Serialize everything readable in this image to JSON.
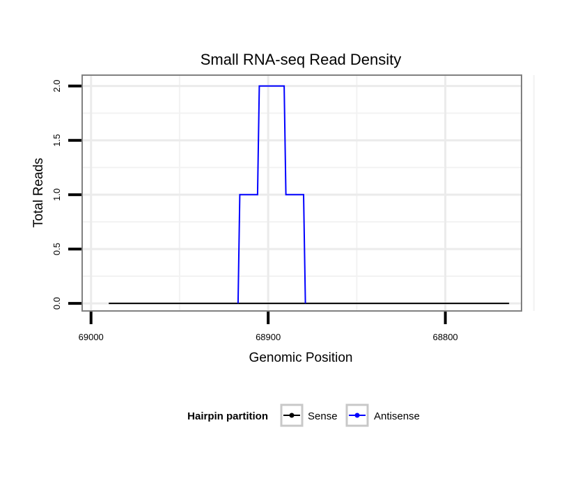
{
  "chart_data": {
    "type": "line",
    "title": "Small RNA-seq Read Density",
    "xlabel": "Genomic Position",
    "ylabel": "Total Reads",
    "x_reversed": true,
    "xlim": [
      69005,
      68757
    ],
    "ylim": [
      -0.07,
      2.1
    ],
    "x_ticks": [
      69000,
      68900,
      68800
    ],
    "x_tick_labels": [
      "69000",
      "68900",
      "68800"
    ],
    "y_ticks": [
      0.0,
      0.5,
      1.0,
      1.5,
      2.0
    ],
    "y_tick_labels": [
      "0.0",
      "0.5",
      "1.0",
      "1.5",
      "2.0"
    ],
    "grid": true,
    "series": [
      {
        "name": "Sense",
        "color": "#000000",
        "x": [
          68990,
          68764
        ],
        "y": [
          0,
          0
        ]
      },
      {
        "name": "Antisense",
        "color": "#0000ff",
        "x": [
          68917,
          68916,
          68906,
          68905,
          68891,
          68890,
          68880,
          68879
        ],
        "y": [
          0,
          1,
          1,
          2,
          2,
          1,
          1,
          0
        ]
      }
    ],
    "legend": {
      "title": "Hairpin partition",
      "position": "bottom",
      "entries": [
        "Sense",
        "Antisense"
      ]
    }
  }
}
